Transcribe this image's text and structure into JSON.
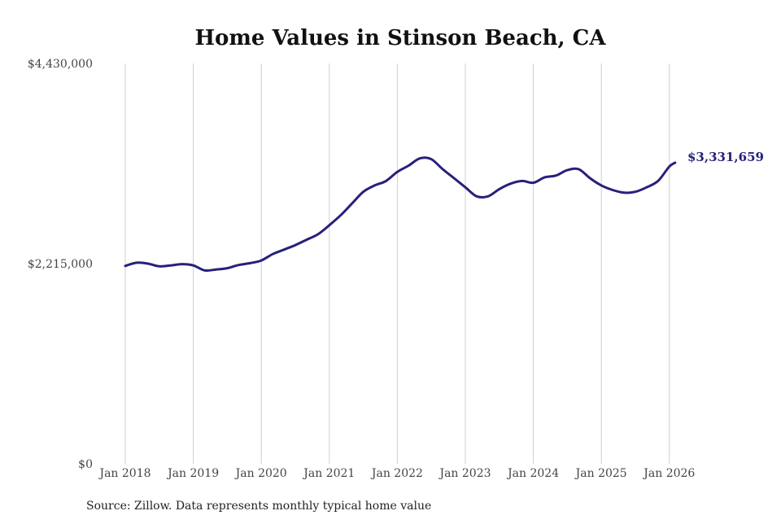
{
  "chart_data": {
    "type": "line",
    "title": "Home Values in Stinson Beach, CA",
    "xlabel": "",
    "ylabel": "",
    "ylim": [
      0,
      4430000
    ],
    "xlim": [
      "2018-01",
      "2026-02"
    ],
    "grid": "vertical",
    "line_color": "#27207a",
    "y_ticks": [
      {
        "value": 0,
        "label": "$0"
      },
      {
        "value": 2215000,
        "label": "$2,215,000"
      },
      {
        "value": 4430000,
        "label": "$4,430,000"
      }
    ],
    "x_ticks": [
      {
        "value": "2018-01",
        "label": "Jan 2018"
      },
      {
        "value": "2019-01",
        "label": "Jan 2019"
      },
      {
        "value": "2020-01",
        "label": "Jan 2020"
      },
      {
        "value": "2021-01",
        "label": "Jan 2021"
      },
      {
        "value": "2022-01",
        "label": "Jan 2022"
      },
      {
        "value": "2023-01",
        "label": "Jan 2023"
      },
      {
        "value": "2024-01",
        "label": "Jan 2024"
      },
      {
        "value": "2025-01",
        "label": "Jan 2025"
      },
      {
        "value": "2026-01",
        "label": "Jan 2026"
      }
    ],
    "end_label": "$3,331,659",
    "series": [
      {
        "points": [
          [
            "2018-01",
            2190000
          ],
          [
            "2018-03",
            2225000
          ],
          [
            "2018-05",
            2215000
          ],
          [
            "2018-07",
            2185000
          ],
          [
            "2018-09",
            2195000
          ],
          [
            "2018-11",
            2210000
          ],
          [
            "2019-01",
            2195000
          ],
          [
            "2019-03",
            2140000
          ],
          [
            "2019-05",
            2150000
          ],
          [
            "2019-07",
            2165000
          ],
          [
            "2019-09",
            2200000
          ],
          [
            "2019-11",
            2220000
          ],
          [
            "2020-01",
            2250000
          ],
          [
            "2020-03",
            2320000
          ],
          [
            "2020-05",
            2370000
          ],
          [
            "2020-07",
            2420000
          ],
          [
            "2020-09",
            2480000
          ],
          [
            "2020-11",
            2540000
          ],
          [
            "2021-01",
            2640000
          ],
          [
            "2021-03",
            2750000
          ],
          [
            "2021-05",
            2880000
          ],
          [
            "2021-07",
            3010000
          ],
          [
            "2021-09",
            3080000
          ],
          [
            "2021-11",
            3130000
          ],
          [
            "2022-01",
            3230000
          ],
          [
            "2022-03",
            3300000
          ],
          [
            "2022-05",
            3380000
          ],
          [
            "2022-07",
            3370000
          ],
          [
            "2022-09",
            3260000
          ],
          [
            "2022-11",
            3160000
          ],
          [
            "2023-01",
            3060000
          ],
          [
            "2023-03",
            2960000
          ],
          [
            "2023-05",
            2960000
          ],
          [
            "2023-07",
            3040000
          ],
          [
            "2023-09",
            3100000
          ],
          [
            "2023-11",
            3130000
          ],
          [
            "2024-01",
            3110000
          ],
          [
            "2024-03",
            3170000
          ],
          [
            "2024-05",
            3190000
          ],
          [
            "2024-07",
            3250000
          ],
          [
            "2024-09",
            3260000
          ],
          [
            "2024-11",
            3160000
          ],
          [
            "2025-01",
            3080000
          ],
          [
            "2025-03",
            3030000
          ],
          [
            "2025-05",
            3000000
          ],
          [
            "2025-07",
            3010000
          ],
          [
            "2025-09",
            3060000
          ],
          [
            "2025-11",
            3130000
          ],
          [
            "2026-01",
            3290000
          ],
          [
            "2026-02",
            3331659
          ]
        ]
      }
    ]
  },
  "source_note": "Source: Zillow. Data represents monthly typical home value"
}
